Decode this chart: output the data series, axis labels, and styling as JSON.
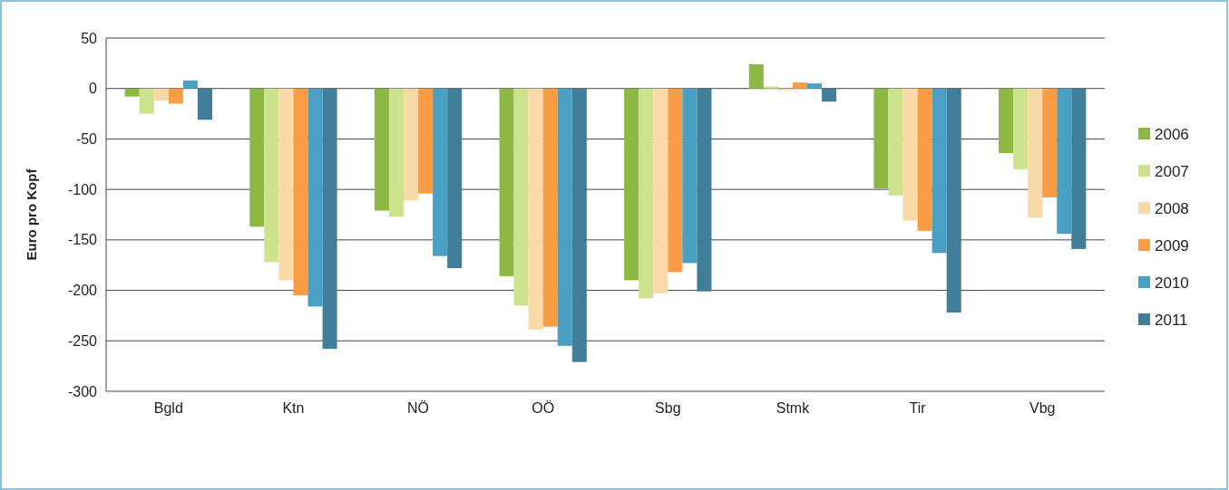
{
  "chart_data": {
    "type": "bar",
    "ylabel": "Euro pro Kopf",
    "categories": [
      "Bgld",
      "Ktn",
      "NÖ",
      "OÖ",
      "Sbg",
      "Stmk",
      "Tir",
      "Vbg"
    ],
    "series": [
      {
        "name": "2006",
        "color": "#8db843",
        "values": [
          -8,
          -137,
          -121,
          -186,
          -190,
          24,
          -99,
          -64
        ]
      },
      {
        "name": "2007",
        "color": "#cde28c",
        "values": [
          -25,
          -172,
          -127,
          -215,
          -208,
          2,
          -106,
          -80
        ]
      },
      {
        "name": "2008",
        "color": "#fad9a8",
        "values": [
          -12,
          -190,
          -111,
          -239,
          -203,
          -2,
          -131,
          -128
        ]
      },
      {
        "name": "2009",
        "color": "#f89d44",
        "values": [
          -15,
          -205,
          -104,
          -236,
          -182,
          6,
          -141,
          -108
        ]
      },
      {
        "name": "2010",
        "color": "#49a0c3",
        "values": [
          8,
          -216,
          -166,
          -255,
          -173,
          5,
          -163,
          -144
        ]
      },
      {
        "name": "2011",
        "color": "#417e9a",
        "values": [
          -31,
          -258,
          -178,
          -271,
          -201,
          -13,
          -222,
          -159
        ]
      }
    ],
    "ylim": [
      -300,
      50
    ],
    "yticks": [
      -300,
      -250,
      -200,
      -150,
      -100,
      -50,
      0,
      50
    ],
    "grid": "y",
    "legend": "right"
  }
}
